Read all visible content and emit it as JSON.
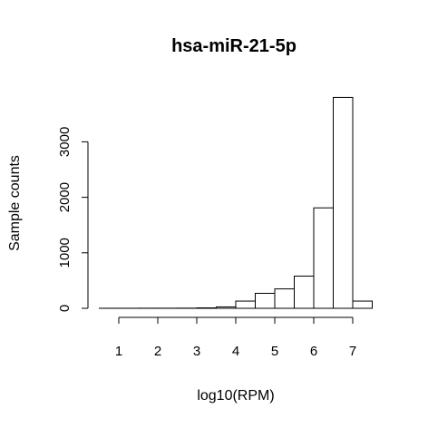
{
  "chart_data": {
    "type": "bar",
    "title": "hsa-miR-21-5p",
    "xlabel": "log10(RPM)",
    "ylabel": "Sample counts",
    "xlim": [
      0.5,
      7.6
    ],
    "ylim": [
      0,
      3800
    ],
    "x_ticks": [
      1,
      2,
      3,
      4,
      5,
      6,
      7
    ],
    "y_ticks": [
      0,
      1000,
      2000,
      3000
    ],
    "x_tick_labels": [
      "1",
      "2",
      "3",
      "4",
      "5",
      "6",
      "7"
    ],
    "y_tick_labels": [
      "0",
      "1000",
      "2000",
      "3000"
    ],
    "bins": [
      {
        "start": 0.5,
        "end": 1.0,
        "count": 1
      },
      {
        "start": 1.0,
        "end": 1.5,
        "count": 1
      },
      {
        "start": 1.5,
        "end": 2.0,
        "count": 2
      },
      {
        "start": 2.0,
        "end": 2.5,
        "count": 2
      },
      {
        "start": 2.5,
        "end": 3.0,
        "count": 3
      },
      {
        "start": 3.0,
        "end": 3.5,
        "count": 8
      },
      {
        "start": 3.5,
        "end": 4.0,
        "count": 25
      },
      {
        "start": 4.0,
        "end": 4.5,
        "count": 130
      },
      {
        "start": 4.5,
        "end": 5.0,
        "count": 270
      },
      {
        "start": 5.0,
        "end": 5.5,
        "count": 350
      },
      {
        "start": 5.5,
        "end": 6.0,
        "count": 580
      },
      {
        "start": 6.0,
        "end": 6.5,
        "count": 1810
      },
      {
        "start": 6.5,
        "end": 7.0,
        "count": 3800
      },
      {
        "start": 7.0,
        "end": 7.5,
        "count": 130
      }
    ],
    "colors": {
      "bar_fill": "#ffffff",
      "bar_stroke": "#000000",
      "axis": "#000000"
    }
  }
}
